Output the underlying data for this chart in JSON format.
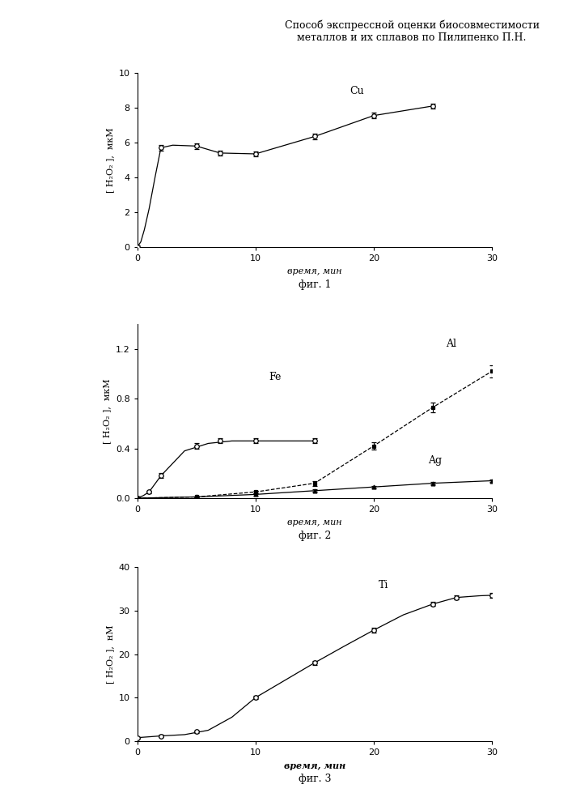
{
  "title_line1": "Способ экспрессной оценки биосовместимости",
  "title_line2": "металлов и их сплавов по Пилипенко П.Н.",
  "fig1": {
    "label": "фиг. 1",
    "ylabel": "[ H₂O₂ ],  мкМ",
    "xlabel": "время, мин",
    "curve_label": "Cu",
    "x": [
      0,
      2,
      5,
      7,
      10,
      15,
      20,
      25
    ],
    "y": [
      0,
      5.7,
      5.8,
      5.4,
      5.35,
      6.35,
      7.55,
      8.1
    ],
    "yerr": [
      0.1,
      0.15,
      0.15,
      0.15,
      0.15,
      0.15,
      0.15,
      0.15
    ],
    "x_smooth": [
      0,
      0.3,
      0.6,
      1.0,
      1.5,
      2.0,
      3.0,
      5.0,
      7.0,
      10.0,
      15.0,
      20.0,
      25.0
    ],
    "y_smooth": [
      0,
      0.3,
      1.0,
      2.2,
      4.0,
      5.7,
      5.85,
      5.8,
      5.4,
      5.35,
      6.35,
      7.55,
      8.1
    ],
    "ylim": [
      0,
      10
    ],
    "xlim": [
      0,
      30
    ],
    "yticks": [
      0,
      2,
      4,
      6,
      8,
      10
    ],
    "xticks": [
      0,
      10,
      20,
      30
    ]
  },
  "fig2": {
    "label": "фиг. 2",
    "ylabel": "[ H₂O₂ ],  мкМ",
    "xlabel": "время, мин",
    "fe_label": "Fe",
    "al_label": "Al",
    "ag_label": "Ag",
    "fe_x": [
      0,
      1,
      2,
      5,
      7,
      10,
      15
    ],
    "fe_y": [
      0,
      0.05,
      0.18,
      0.42,
      0.46,
      0.46,
      0.46
    ],
    "fe_yerr": [
      0.01,
      0.01,
      0.02,
      0.02,
      0.02,
      0.02,
      0.02
    ],
    "fe_x_smooth": [
      0,
      0.5,
      1.0,
      2.0,
      4.0,
      6.0,
      8.0,
      10.0,
      15.0
    ],
    "fe_y_smooth": [
      0,
      0.02,
      0.05,
      0.18,
      0.38,
      0.44,
      0.46,
      0.46,
      0.46
    ],
    "al_x": [
      0,
      5,
      10,
      15,
      20,
      25,
      30
    ],
    "al_y": [
      0,
      0.01,
      0.05,
      0.12,
      0.42,
      0.73,
      1.02
    ],
    "al_yerr": [
      0.005,
      0.005,
      0.01,
      0.02,
      0.03,
      0.04,
      0.05
    ],
    "ag_x": [
      0,
      5,
      10,
      15,
      20,
      25,
      30
    ],
    "ag_y": [
      0,
      0.01,
      0.03,
      0.06,
      0.09,
      0.12,
      0.14
    ],
    "ag_yerr": [
      0.005,
      0.005,
      0.008,
      0.01,
      0.01,
      0.01,
      0.01
    ],
    "ylim": [
      0,
      1.4
    ],
    "xlim": [
      0,
      30
    ],
    "yticks": [
      0,
      0.4,
      0.8,
      1.2
    ],
    "xticks": [
      0,
      10,
      20,
      30
    ]
  },
  "fig3": {
    "label": "фиг. 3",
    "ylabel": "[ H₂O₂ ],  нМ",
    "xlabel": "время, мин",
    "curve_label": "Ti",
    "x": [
      0,
      2,
      5,
      10,
      15,
      20,
      25,
      27,
      30
    ],
    "y": [
      0.8,
      1.2,
      2.2,
      10.0,
      18.0,
      25.5,
      31.5,
      33.0,
      33.5
    ],
    "yerr": [
      0.2,
      0.2,
      0.3,
      0.4,
      0.5,
      0.5,
      0.5,
      0.5,
      0.5
    ],
    "x_smooth": [
      0,
      0.5,
      1.0,
      2.0,
      4.0,
      6.0,
      8.0,
      10.0,
      12.5,
      15.0,
      17.5,
      20.0,
      22.5,
      25.0,
      27.0,
      29.0,
      30.0
    ],
    "y_smooth": [
      0.8,
      0.9,
      1.0,
      1.2,
      1.5,
      2.5,
      5.5,
      10.0,
      14.0,
      18.0,
      21.8,
      25.5,
      29.0,
      31.5,
      33.0,
      33.4,
      33.5
    ],
    "ylim": [
      0,
      40
    ],
    "xlim": [
      0,
      30
    ],
    "yticks": [
      0,
      10,
      20,
      30,
      40
    ],
    "xticks": [
      0,
      10,
      20,
      30
    ]
  },
  "background_color": "#ffffff",
  "fontsize_title": 9,
  "fontsize_label": 8,
  "fontsize_tick": 8,
  "fontsize_caption": 9,
  "fontsize_curve_label": 9
}
